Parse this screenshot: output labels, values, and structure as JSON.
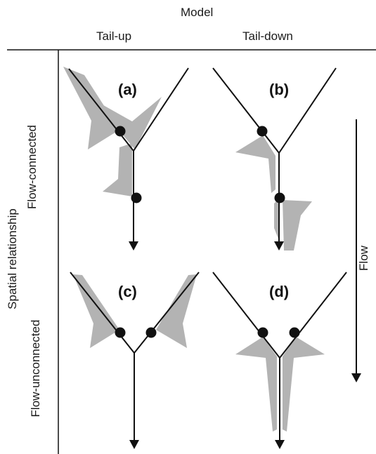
{
  "header": {
    "model_label": "Model",
    "col_tail_up": "Tail-up",
    "col_tail_down": "Tail-down"
  },
  "side": {
    "spatial_label": "Spatial relationship",
    "row_connected": "Flow-connected",
    "row_unconnected": "Flow-unconnected"
  },
  "flow_label": "Flow",
  "panels": {
    "a": "(a)",
    "b": "(b)",
    "c": "(c)",
    "d": "(d)"
  },
  "colors": {
    "line": "#111111",
    "shade": "#b3b3b3"
  }
}
